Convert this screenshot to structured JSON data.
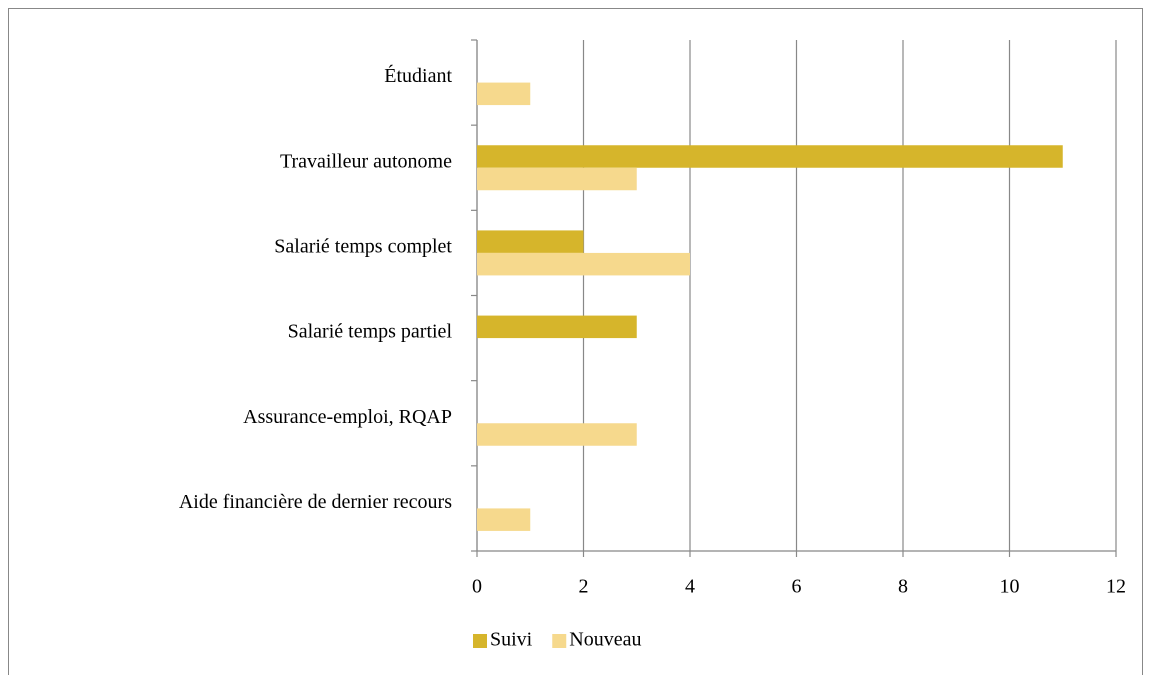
{
  "chart_data": {
    "type": "barh",
    "categories": [
      "Étudiant",
      "Travailleur autonome",
      "Salarié temps complet",
      "Salarié temps partiel",
      "Assurance-emploi, RQAP",
      "Aide financière de dernier recours"
    ],
    "series": [
      {
        "name": "Suivi",
        "color": "#d6b52b",
        "values": [
          0,
          11,
          2,
          3,
          0,
          0
        ]
      },
      {
        "name": "Nouveau",
        "color": "#f6d98d",
        "values": [
          1,
          3,
          4,
          0,
          3,
          1
        ]
      }
    ],
    "xlim": [
      0,
      12
    ],
    "xticks": [
      0,
      2,
      4,
      6,
      8,
      10,
      12
    ],
    "grid": true,
    "legend": "bottom"
  }
}
